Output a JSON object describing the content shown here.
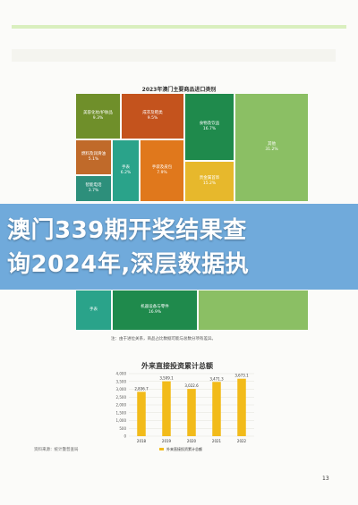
{
  "treemap": {
    "title": "2023年澳门主要商品进口类别",
    "tiles": [
      {
        "label": "美容化妆/护肤品",
        "value": "9.3%",
        "color": "#6f8f2a"
      },
      {
        "label": "成衣及鞋类",
        "value": "9.5%",
        "color": "#c4531d"
      },
      {
        "label": "食物及饮品",
        "value": "16.7%",
        "color": "#1f8a4c"
      },
      {
        "label": "其他",
        "value": "31.2%",
        "color": "#8bbf64"
      },
      {
        "label": "燃料及润滑油",
        "value": "5.1%",
        "color": "#c06a2a"
      },
      {
        "label": "手表",
        "value": "6.2%",
        "color": "#2aa38a"
      },
      {
        "label": "手袋及皮包",
        "value": "7.9%",
        "color": "#e0781c"
      },
      {
        "label": "贵金属首饰",
        "value": "15.2%",
        "color": "#e7b82c"
      },
      {
        "label": "智能电话",
        "value": "3.7%",
        "color": "#2d8f7b"
      }
    ]
  },
  "treemap2": {
    "tiles": [
      {
        "label": "手表",
        "value": "",
        "color": "#2aa38a"
      },
      {
        "label": "机器设备与零件",
        "value": "16.9%",
        "color": "#1f8a4c"
      }
    ]
  },
  "banner": {
    "line1": "澳门339期开奖结果查",
    "line2": "询2024年,深层数据执"
  },
  "note": "注：由于进位关系，商品占比数据可能与总数分项有差异。",
  "source": "资料来源：统计暨普查局",
  "page_number": "13",
  "colors": {
    "bar": "#f2bb1a",
    "banner": "#5c9ed6"
  },
  "chart_data": {
    "type": "bar",
    "title": "外来直接投资累计总额",
    "categories": [
      "2018",
      "2019",
      "2020",
      "2021",
      "2022"
    ],
    "values": [
      2836.7,
      3509.1,
      3022.6,
      3471.3,
      3673.1
    ],
    "value_labels": [
      "2,836.7",
      "3,509.1",
      "3,022.6",
      "3,471.3",
      "3,673.1"
    ],
    "yticks": [
      "4,000",
      "3,500",
      "3,000",
      "2,500",
      "2,000",
      "1,500",
      "1,000",
      "500",
      "0"
    ],
    "ylim": [
      0,
      4000
    ],
    "legend": "外来直接投资累计总额",
    "ylabel": "",
    "xlabel": ""
  }
}
